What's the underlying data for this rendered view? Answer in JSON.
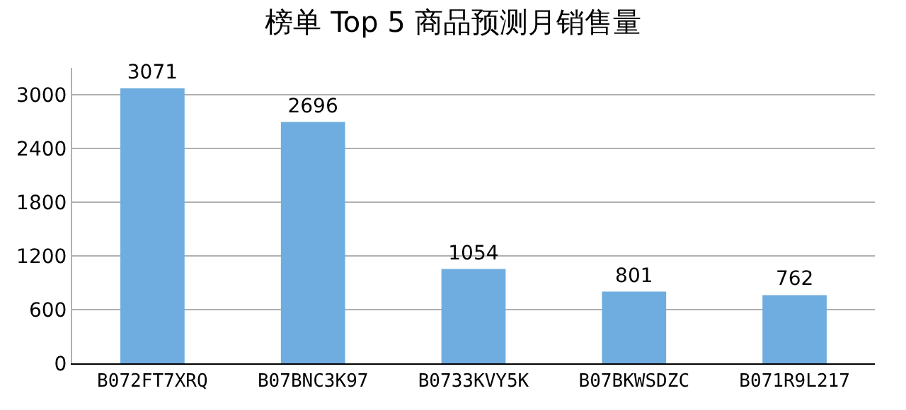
{
  "chart_data": {
    "type": "bar",
    "title": "榜单 Top 5 商品预测月销售量",
    "categories": [
      "B072FT7XRQ",
      "B07BNC3K97",
      "B0733KVY5K",
      "B07BKWSDZC",
      "B071R9L217"
    ],
    "values": [
      3071,
      2696,
      1054,
      801,
      762
    ],
    "color": "#6fade0",
    "ylim": [
      0,
      3300
    ],
    "yticks": [
      0,
      600,
      1200,
      1800,
      2400,
      3000
    ],
    "grid": "y",
    "data_labels": true
  }
}
